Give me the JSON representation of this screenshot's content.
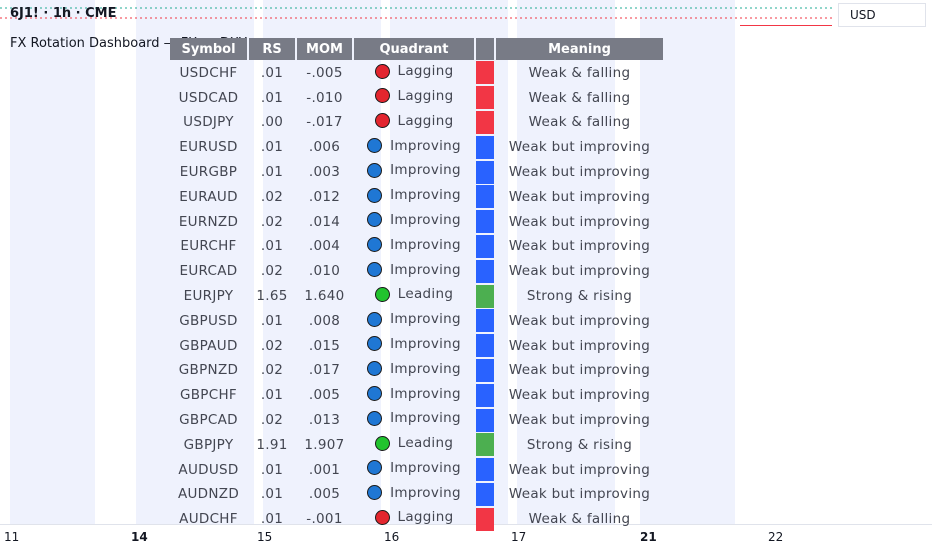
{
  "header": {
    "symbol_title": "6J1! · 1h · CME",
    "dashboard_title": "FX Rotation Dashboard — FX vs DXY",
    "currency": "USD"
  },
  "colors": {
    "lagging": "#f23645",
    "improving": "#2962ff",
    "leading": "#4caf50",
    "dot_lagging": "#e3262e",
    "dot_improving": "#1f77d4",
    "dot_leading": "#22c32e",
    "header_bg": "#787b86"
  },
  "table": {
    "headers": [
      "Symbol",
      "RS",
      "MOM",
      "Quadrant",
      "",
      "Meaning"
    ],
    "rows": [
      {
        "symbol": "USDCHF",
        "rs": ".01",
        "mom": "-.005",
        "quadrant": "Lagging",
        "meaning": "Weak & falling",
        "state": "lagging"
      },
      {
        "symbol": "USDCAD",
        "rs": ".01",
        "mom": "-.010",
        "quadrant": "Lagging",
        "meaning": "Weak & falling",
        "state": "lagging"
      },
      {
        "symbol": "USDJPY",
        "rs": ".00",
        "mom": "-.017",
        "quadrant": "Lagging",
        "meaning": "Weak & falling",
        "state": "lagging"
      },
      {
        "symbol": "EURUSD",
        "rs": ".01",
        "mom": ".006",
        "quadrant": "Improving",
        "meaning": "Weak but improving",
        "state": "improving"
      },
      {
        "symbol": "EURGBP",
        "rs": ".01",
        "mom": ".003",
        "quadrant": "Improving",
        "meaning": "Weak but improving",
        "state": "improving"
      },
      {
        "symbol": "EURAUD",
        "rs": ".02",
        "mom": ".012",
        "quadrant": "Improving",
        "meaning": "Weak but improving",
        "state": "improving"
      },
      {
        "symbol": "EURNZD",
        "rs": ".02",
        "mom": ".014",
        "quadrant": "Improving",
        "meaning": "Weak but improving",
        "state": "improving"
      },
      {
        "symbol": "EURCHF",
        "rs": ".01",
        "mom": ".004",
        "quadrant": "Improving",
        "meaning": "Weak but improving",
        "state": "improving"
      },
      {
        "symbol": "EURCAD",
        "rs": ".02",
        "mom": ".010",
        "quadrant": "Improving",
        "meaning": "Weak but improving",
        "state": "improving"
      },
      {
        "symbol": "EURJPY",
        "rs": "1.65",
        "mom": "1.640",
        "quadrant": "Leading",
        "meaning": "Strong & rising",
        "state": "leading"
      },
      {
        "symbol": "GBPUSD",
        "rs": ".01",
        "mom": ".008",
        "quadrant": "Improving",
        "meaning": "Weak but improving",
        "state": "improving"
      },
      {
        "symbol": "GBPAUD",
        "rs": ".02",
        "mom": ".015",
        "quadrant": "Improving",
        "meaning": "Weak but improving",
        "state": "improving"
      },
      {
        "symbol": "GBPNZD",
        "rs": ".02",
        "mom": ".017",
        "quadrant": "Improving",
        "meaning": "Weak but improving",
        "state": "improving"
      },
      {
        "symbol": "GBPCHF",
        "rs": ".01",
        "mom": ".005",
        "quadrant": "Improving",
        "meaning": "Weak but improving",
        "state": "improving"
      },
      {
        "symbol": "GBPCAD",
        "rs": ".02",
        "mom": ".013",
        "quadrant": "Improving",
        "meaning": "Weak but improving",
        "state": "improving"
      },
      {
        "symbol": "GBPJPY",
        "rs": "1.91",
        "mom": "1.907",
        "quadrant": "Leading",
        "meaning": "Strong & rising",
        "state": "leading"
      },
      {
        "symbol": "AUDUSD",
        "rs": ".01",
        "mom": ".001",
        "quadrant": "Improving",
        "meaning": "Weak but improving",
        "state": "improving"
      },
      {
        "symbol": "AUDNZD",
        "rs": ".01",
        "mom": ".005",
        "quadrant": "Improving",
        "meaning": "Weak but improving",
        "state": "improving"
      },
      {
        "symbol": "AUDCHF",
        "rs": ".01",
        "mom": "-.001",
        "quadrant": "Lagging",
        "meaning": "Weak & falling",
        "state": "lagging"
      }
    ]
  },
  "time_axis": {
    "labels": [
      {
        "text": "11",
        "bold": false
      },
      {
        "text": "14",
        "bold": true
      },
      {
        "text": "15",
        "bold": false
      },
      {
        "text": "16",
        "bold": false
      },
      {
        "text": "17",
        "bold": false
      },
      {
        "text": "21",
        "bold": true
      },
      {
        "text": "22",
        "bold": false
      }
    ]
  }
}
